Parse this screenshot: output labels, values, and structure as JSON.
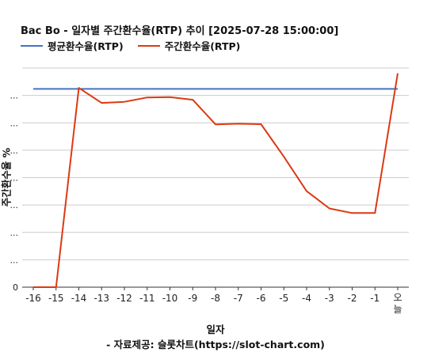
{
  "chart_data": {
    "type": "line",
    "title": "Bac Bo - 일자별 주간환수율(RTP) 추이 [2025-07-28 15:00:00]",
    "xlabel": "일자",
    "source": "- 자료제공: 슬롯차트(https://slot-chart.com)",
    "ylabel": "주간환수율 %",
    "categories": [
      "-16",
      "-15",
      "-14",
      "-13",
      "-12",
      "-11",
      "-10",
      "-9",
      "-8",
      "-7",
      "-6",
      "-5",
      "-4",
      "-3",
      "-2",
      "-1",
      "오늘"
    ],
    "y_tick_labels": [
      "0",
      "...",
      "...",
      "...",
      "...",
      "...",
      "...",
      "..."
    ],
    "ylim": [
      0,
      105
    ],
    "grid": true,
    "legend_position": "top-left",
    "series": [
      {
        "name": "평균환수율(RTP)",
        "color": "#4472c4",
        "values": [
          95,
          95,
          95,
          95,
          95,
          95,
          95,
          95,
          95,
          95,
          95,
          95,
          95,
          95,
          95,
          95,
          95
        ]
      },
      {
        "name": "주간환수율(RTP)",
        "color": "#dc3912",
        "values": [
          0,
          0,
          95.5,
          88.3,
          88.8,
          90.9,
          91.1,
          89.8,
          78.0,
          78.3,
          78.1,
          62.5,
          46.0,
          37.7,
          35.5,
          35.5,
          102.5
        ]
      }
    ]
  }
}
